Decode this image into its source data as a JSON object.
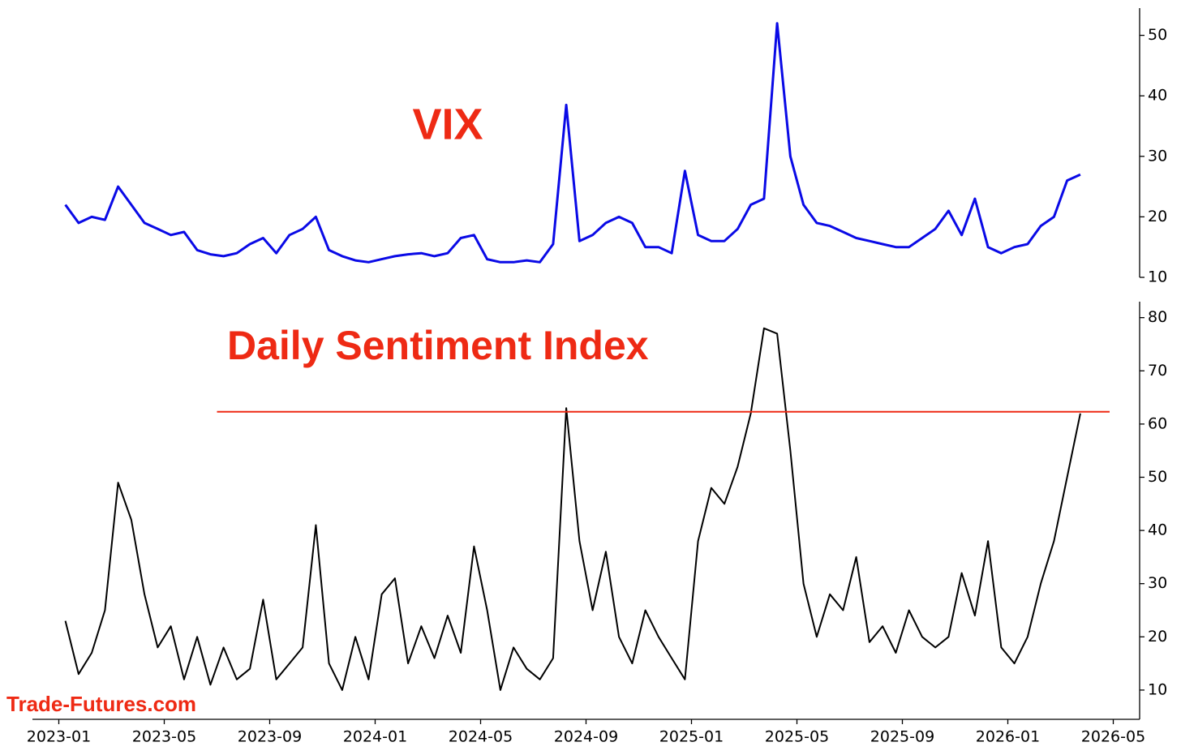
{
  "chart_data": {
    "type": "line",
    "source": "Trade-Futures.com",
    "x": [
      "2023-01",
      "2023-01",
      "2023-02",
      "2023-02",
      "2023-03",
      "2023-03",
      "2023-04",
      "2023-04",
      "2023-05",
      "2023-05",
      "2023-06",
      "2023-06",
      "2023-07",
      "2023-07",
      "2023-08",
      "2023-08",
      "2023-09",
      "2023-09",
      "2023-10",
      "2023-10",
      "2023-11",
      "2023-11",
      "2023-12",
      "2023-12",
      "2024-01",
      "2024-01",
      "2024-02",
      "2024-02",
      "2024-03",
      "2024-03",
      "2024-04",
      "2024-04",
      "2024-05",
      "2024-05",
      "2024-06",
      "2024-06",
      "2024-07",
      "2024-07",
      "2024-08",
      "2024-08",
      "2024-09",
      "2024-09",
      "2024-10",
      "2024-10",
      "2024-11",
      "2024-11",
      "2024-12",
      "2024-12",
      "2025-01",
      "2025-01",
      "2025-02",
      "2025-02",
      "2025-03",
      "2025-03",
      "2025-04",
      "2025-04",
      "2025-05",
      "2025-05",
      "2025-06",
      "2025-06",
      "2025-07",
      "2025-07",
      "2025-08",
      "2025-08",
      "2025-09",
      "2025-09",
      "2025-10",
      "2025-10",
      "2025-11",
      "2025-11",
      "2025-12",
      "2025-12",
      "2026-01",
      "2026-01",
      "2026-02",
      "2026-02",
      "2026-03",
      "2026-03"
    ],
    "xlim": [
      "2022-12",
      "2026-06"
    ],
    "xticks": [
      "2023-01",
      "2023-05",
      "2023-09",
      "2024-01",
      "2024-05",
      "2024-09",
      "2025-01",
      "2025-05",
      "2025-09",
      "2026-01",
      "2026-05"
    ],
    "panels": [
      {
        "ylim": [
          10,
          54.5
        ],
        "yticks": [
          10,
          20,
          30,
          40,
          50
        ],
        "series": [
          {
            "name": "VIX",
            "color": "#0a0ae6",
            "values": [
              22,
              19,
              20,
              19.5,
              25,
              22,
              19,
              18,
              17,
              17.5,
              14.5,
              13.8,
              13.5,
              14,
              15.5,
              16.5,
              14,
              17,
              18,
              20,
              14.5,
              13.5,
              12.8,
              12.5,
              13,
              13.5,
              13.8,
              14,
              13.5,
              14,
              16.5,
              17,
              13,
              12.5,
              12.5,
              12.8,
              12.5,
              15.5,
              38.5,
              16,
              17,
              19,
              20,
              19,
              15,
              15,
              14,
              27.6,
              17,
              16,
              16,
              18,
              22,
              23,
              52,
              30,
              22,
              19,
              18.5,
              17.5,
              16.5,
              16,
              15.5,
              15,
              15,
              16.5,
              18,
              21,
              17,
              23,
              15,
              14,
              15,
              15.5,
              18.5,
              20,
              26,
              27
            ]
          }
        ]
      },
      {
        "ylim": [
          4.5,
          83
        ],
        "yticks": [
          10,
          20,
          30,
          40,
          50,
          60,
          70,
          80
        ],
        "hline": {
          "value": 62.3,
          "from": "2023-07",
          "color": "#ee2a14"
        },
        "series": [
          {
            "name": "Daily Sentiment Index",
            "color": "#000000",
            "values": [
              23,
              13,
              17,
              25,
              49,
              42,
              28,
              18,
              22,
              12,
              20,
              11,
              18,
              12,
              14,
              27,
              12,
              15,
              18,
              41,
              15,
              10,
              20,
              12,
              28,
              31,
              15,
              22,
              16,
              24,
              17,
              37,
              25,
              10,
              18,
              14,
              12,
              16,
              63,
              38,
              25,
              36,
              20,
              15,
              25,
              20,
              16,
              12,
              38,
              48,
              45,
              52,
              62,
              78,
              77,
              55,
              30,
              20,
              28,
              25,
              35,
              19,
              22,
              17,
              25,
              20,
              18,
              20,
              32,
              24,
              38,
              18,
              15,
              20,
              30,
              38,
              50,
              62
            ]
          }
        ]
      }
    ]
  }
}
